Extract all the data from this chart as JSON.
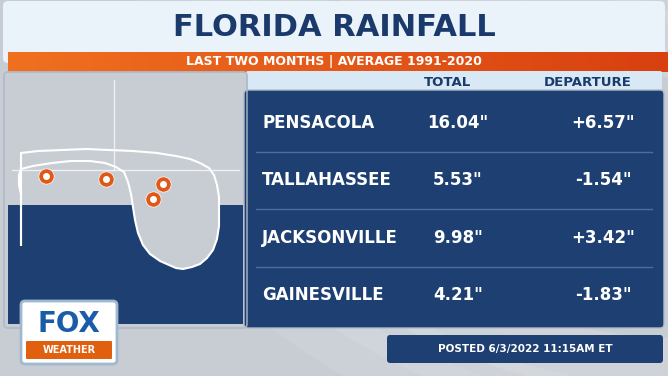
{
  "title": "FLORIDA RAINFALL",
  "subtitle": "LAST TWO MONTHS | AVERAGE 1991-2020",
  "col_headers": [
    "TOTAL",
    "DEPARTURE"
  ],
  "cities": [
    "PENSACOLA",
    "TALLAHASSEE",
    "JACKSONVILLE",
    "GAINESVILLE"
  ],
  "totals": [
    "16.04\"",
    "5.53\"",
    "9.98\"",
    "4.21\""
  ],
  "departures": [
    "+6.57\"",
    "-1.54\"",
    "+3.42\"",
    "-1.83\""
  ],
  "bg_color": "#c8cdd4",
  "title_box_color": "#eaf2fa",
  "orange_bar_left": "#f07020",
  "orange_bar_right": "#e05010",
  "title_color": "#1a3a6b",
  "subtitle_color": "#ffffff",
  "col_header_bg": "#d8e8f4",
  "col_header_color": "#1a3a6b",
  "table_bg": "#1e3f72",
  "table_text_color": "#ffffff",
  "divider_color": "#4a6ea0",
  "map_land_color": "#c8cdd4",
  "map_gulf_color": "#1e3f72",
  "map_border_color": "#ffffff",
  "orange_pin": "#e05818",
  "posted_text": "POSTED 6/3/2022 11:15AM ET",
  "posted_bg": "#1e3f72",
  "posted_text_color": "#ffffff",
  "fox_blue": "#1a5ca8",
  "fox_orange": "#e06010"
}
